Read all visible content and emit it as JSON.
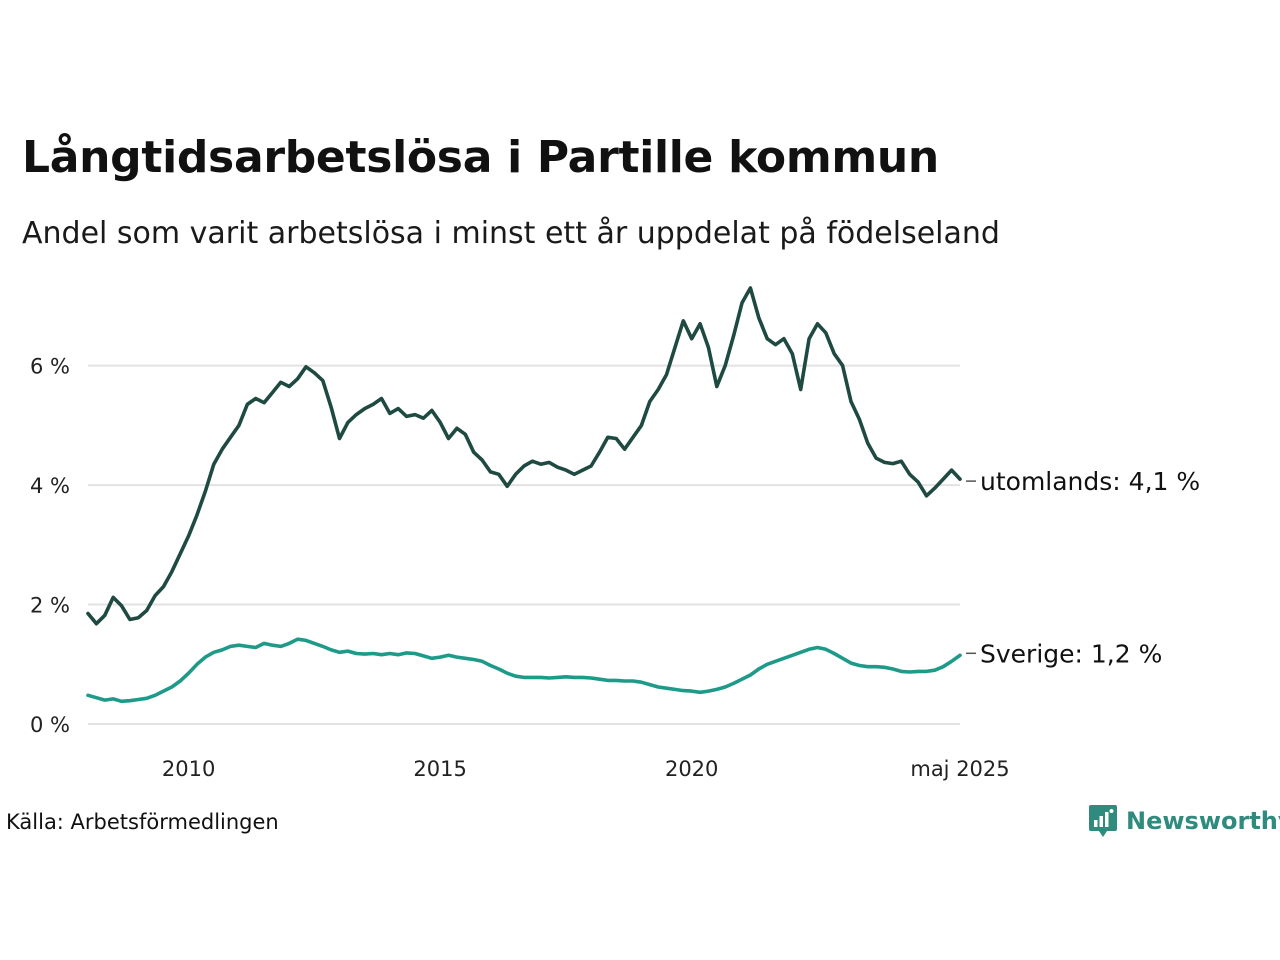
{
  "chart_data": {
    "type": "line",
    "title": "Långtidsarbetslösa i Partille kommun",
    "subtitle": "Andel som varit arbetslösa i minst ett år uppdelat på födelseland",
    "xlabel": "",
    "ylabel": "",
    "x_start": "2008-01",
    "x_end": "2025-05",
    "x_ticks": [
      {
        "date": "2010-01",
        "label": "2010"
      },
      {
        "date": "2015-01",
        "label": "2015"
      },
      {
        "date": "2020-01",
        "label": "2020"
      },
      {
        "date": "2025-05",
        "label": "maj 2025"
      }
    ],
    "ylim": [
      0,
      7.4
    ],
    "y_ticks": [
      {
        "value": 0,
        "label": "0 %"
      },
      {
        "value": 2,
        "label": "2 %"
      },
      {
        "value": 4,
        "label": "4 %"
      },
      {
        "value": 6,
        "label": "6 %"
      }
    ],
    "grid": true,
    "series": [
      {
        "name": "utomlands",
        "end_label": "utomlands: 4,1 %",
        "color": "#1f4a42",
        "points": [
          [
            "2008-01",
            1.85
          ],
          [
            "2008-03",
            1.68
          ],
          [
            "2008-05",
            1.82
          ],
          [
            "2008-07",
            2.12
          ],
          [
            "2008-09",
            1.98
          ],
          [
            "2008-11",
            1.75
          ],
          [
            "2009-01",
            1.78
          ],
          [
            "2009-03",
            1.9
          ],
          [
            "2009-05",
            2.15
          ],
          [
            "2009-07",
            2.3
          ],
          [
            "2009-09",
            2.55
          ],
          [
            "2009-11",
            2.85
          ],
          [
            "2010-01",
            3.15
          ],
          [
            "2010-03",
            3.5
          ],
          [
            "2010-05",
            3.9
          ],
          [
            "2010-07",
            4.35
          ],
          [
            "2010-09",
            4.6
          ],
          [
            "2010-11",
            4.8
          ],
          [
            "2011-01",
            5.0
          ],
          [
            "2011-03",
            5.35
          ],
          [
            "2011-05",
            5.45
          ],
          [
            "2011-07",
            5.38
          ],
          [
            "2011-09",
            5.55
          ],
          [
            "2011-11",
            5.72
          ],
          [
            "2012-01",
            5.65
          ],
          [
            "2012-03",
            5.78
          ],
          [
            "2012-05",
            5.98
          ],
          [
            "2012-07",
            5.88
          ],
          [
            "2012-09",
            5.75
          ],
          [
            "2012-11",
            5.3
          ],
          [
            "2013-01",
            4.78
          ],
          [
            "2013-03",
            5.05
          ],
          [
            "2013-05",
            5.18
          ],
          [
            "2013-07",
            5.28
          ],
          [
            "2013-09",
            5.35
          ],
          [
            "2013-11",
            5.45
          ],
          [
            "2014-01",
            5.2
          ],
          [
            "2014-03",
            5.28
          ],
          [
            "2014-05",
            5.15
          ],
          [
            "2014-07",
            5.18
          ],
          [
            "2014-09",
            5.12
          ],
          [
            "2014-11",
            5.25
          ],
          [
            "2015-01",
            5.05
          ],
          [
            "2015-03",
            4.78
          ],
          [
            "2015-05",
            4.95
          ],
          [
            "2015-07",
            4.85
          ],
          [
            "2015-09",
            4.55
          ],
          [
            "2015-11",
            4.42
          ],
          [
            "2016-01",
            4.22
          ],
          [
            "2016-03",
            4.18
          ],
          [
            "2016-05",
            3.98
          ],
          [
            "2016-07",
            4.18
          ],
          [
            "2016-09",
            4.32
          ],
          [
            "2016-11",
            4.4
          ],
          [
            "2017-01",
            4.35
          ],
          [
            "2017-03",
            4.38
          ],
          [
            "2017-05",
            4.3
          ],
          [
            "2017-07",
            4.25
          ],
          [
            "2017-09",
            4.18
          ],
          [
            "2017-11",
            4.25
          ],
          [
            "2018-01",
            4.32
          ],
          [
            "2018-03",
            4.55
          ],
          [
            "2018-05",
            4.8
          ],
          [
            "2018-07",
            4.78
          ],
          [
            "2018-09",
            4.6
          ],
          [
            "2018-11",
            4.8
          ],
          [
            "2019-01",
            5.0
          ],
          [
            "2019-03",
            5.4
          ],
          [
            "2019-05",
            5.6
          ],
          [
            "2019-07",
            5.85
          ],
          [
            "2019-09",
            6.3
          ],
          [
            "2019-11",
            6.75
          ],
          [
            "2020-01",
            6.45
          ],
          [
            "2020-03",
            6.7
          ],
          [
            "2020-05",
            6.3
          ],
          [
            "2020-07",
            5.65
          ],
          [
            "2020-09",
            6.0
          ],
          [
            "2020-11",
            6.5
          ],
          [
            "2021-01",
            7.05
          ],
          [
            "2021-03",
            7.3
          ],
          [
            "2021-05",
            6.8
          ],
          [
            "2021-07",
            6.45
          ],
          [
            "2021-09",
            6.35
          ],
          [
            "2021-11",
            6.45
          ],
          [
            "2022-01",
            6.2
          ],
          [
            "2022-03",
            5.6
          ],
          [
            "2022-05",
            6.45
          ],
          [
            "2022-07",
            6.7
          ],
          [
            "2022-09",
            6.55
          ],
          [
            "2022-11",
            6.2
          ],
          [
            "2023-01",
            6.0
          ],
          [
            "2023-03",
            5.4
          ],
          [
            "2023-05",
            5.1
          ],
          [
            "2023-07",
            4.7
          ],
          [
            "2023-09",
            4.45
          ],
          [
            "2023-11",
            4.38
          ],
          [
            "2024-01",
            4.36
          ],
          [
            "2024-03",
            4.4
          ],
          [
            "2024-05",
            4.18
          ],
          [
            "2024-07",
            4.05
          ],
          [
            "2024-09",
            3.82
          ],
          [
            "2024-11",
            3.95
          ],
          [
            "2025-01",
            4.1
          ],
          [
            "2025-03",
            4.25
          ],
          [
            "2025-05",
            4.1
          ]
        ]
      },
      {
        "name": "Sverige",
        "end_label": "Sverige: 1,2 %",
        "color": "#1e9a89",
        "points": [
          [
            "2008-01",
            0.48
          ],
          [
            "2008-03",
            0.44
          ],
          [
            "2008-05",
            0.4
          ],
          [
            "2008-07",
            0.42
          ],
          [
            "2008-09",
            0.38
          ],
          [
            "2008-11",
            0.39
          ],
          [
            "2009-01",
            0.41
          ],
          [
            "2009-03",
            0.43
          ],
          [
            "2009-05",
            0.48
          ],
          [
            "2009-07",
            0.55
          ],
          [
            "2009-09",
            0.62
          ],
          [
            "2009-11",
            0.72
          ],
          [
            "2010-01",
            0.85
          ],
          [
            "2010-03",
            1.0
          ],
          [
            "2010-05",
            1.12
          ],
          [
            "2010-07",
            1.2
          ],
          [
            "2010-09",
            1.24
          ],
          [
            "2010-11",
            1.3
          ],
          [
            "2011-01",
            1.32
          ],
          [
            "2011-03",
            1.3
          ],
          [
            "2011-05",
            1.28
          ],
          [
            "2011-07",
            1.35
          ],
          [
            "2011-09",
            1.32
          ],
          [
            "2011-11",
            1.3
          ],
          [
            "2012-01",
            1.35
          ],
          [
            "2012-03",
            1.42
          ],
          [
            "2012-05",
            1.4
          ],
          [
            "2012-07",
            1.35
          ],
          [
            "2012-09",
            1.3
          ],
          [
            "2012-11",
            1.24
          ],
          [
            "2013-01",
            1.2
          ],
          [
            "2013-03",
            1.22
          ],
          [
            "2013-05",
            1.18
          ],
          [
            "2013-07",
            1.17
          ],
          [
            "2013-09",
            1.18
          ],
          [
            "2013-11",
            1.16
          ],
          [
            "2014-01",
            1.18
          ],
          [
            "2014-03",
            1.16
          ],
          [
            "2014-05",
            1.19
          ],
          [
            "2014-07",
            1.18
          ],
          [
            "2014-09",
            1.14
          ],
          [
            "2014-11",
            1.1
          ],
          [
            "2015-01",
            1.12
          ],
          [
            "2015-03",
            1.15
          ],
          [
            "2015-05",
            1.12
          ],
          [
            "2015-07",
            1.1
          ],
          [
            "2015-09",
            1.08
          ],
          [
            "2015-11",
            1.05
          ],
          [
            "2016-01",
            0.98
          ],
          [
            "2016-03",
            0.92
          ],
          [
            "2016-05",
            0.85
          ],
          [
            "2016-07",
            0.8
          ],
          [
            "2016-09",
            0.78
          ],
          [
            "2016-11",
            0.78
          ],
          [
            "2017-01",
            0.78
          ],
          [
            "2017-03",
            0.77
          ],
          [
            "2017-05",
            0.78
          ],
          [
            "2017-07",
            0.79
          ],
          [
            "2017-09",
            0.78
          ],
          [
            "2017-11",
            0.78
          ],
          [
            "2018-01",
            0.77
          ],
          [
            "2018-03",
            0.75
          ],
          [
            "2018-05",
            0.73
          ],
          [
            "2018-07",
            0.73
          ],
          [
            "2018-09",
            0.72
          ],
          [
            "2018-11",
            0.72
          ],
          [
            "2019-01",
            0.7
          ],
          [
            "2019-03",
            0.66
          ],
          [
            "2019-05",
            0.62
          ],
          [
            "2019-07",
            0.6
          ],
          [
            "2019-09",
            0.58
          ],
          [
            "2019-11",
            0.56
          ],
          [
            "2020-01",
            0.55
          ],
          [
            "2020-03",
            0.53
          ],
          [
            "2020-05",
            0.55
          ],
          [
            "2020-07",
            0.58
          ],
          [
            "2020-09",
            0.62
          ],
          [
            "2020-11",
            0.68
          ],
          [
            "2021-01",
            0.75
          ],
          [
            "2021-03",
            0.82
          ],
          [
            "2021-05",
            0.92
          ],
          [
            "2021-07",
            1.0
          ],
          [
            "2021-09",
            1.05
          ],
          [
            "2021-11",
            1.1
          ],
          [
            "2022-01",
            1.15
          ],
          [
            "2022-03",
            1.2
          ],
          [
            "2022-05",
            1.25
          ],
          [
            "2022-07",
            1.28
          ],
          [
            "2022-09",
            1.25
          ],
          [
            "2022-11",
            1.18
          ],
          [
            "2023-01",
            1.1
          ],
          [
            "2023-03",
            1.02
          ],
          [
            "2023-05",
            0.98
          ],
          [
            "2023-07",
            0.96
          ],
          [
            "2023-09",
            0.96
          ],
          [
            "2023-11",
            0.95
          ],
          [
            "2024-01",
            0.92
          ],
          [
            "2024-03",
            0.88
          ],
          [
            "2024-05",
            0.87
          ],
          [
            "2024-07",
            0.88
          ],
          [
            "2024-09",
            0.88
          ],
          [
            "2024-11",
            0.9
          ],
          [
            "2025-01",
            0.96
          ],
          [
            "2025-03",
            1.05
          ],
          [
            "2025-05",
            1.15
          ]
        ]
      }
    ]
  },
  "footer": {
    "source": "Källa: Arbetsförmedlingen",
    "brand": "Newsworthy",
    "brand_color": "#2e8b7d",
    "brand_icon": "chart-bubble-icon"
  }
}
